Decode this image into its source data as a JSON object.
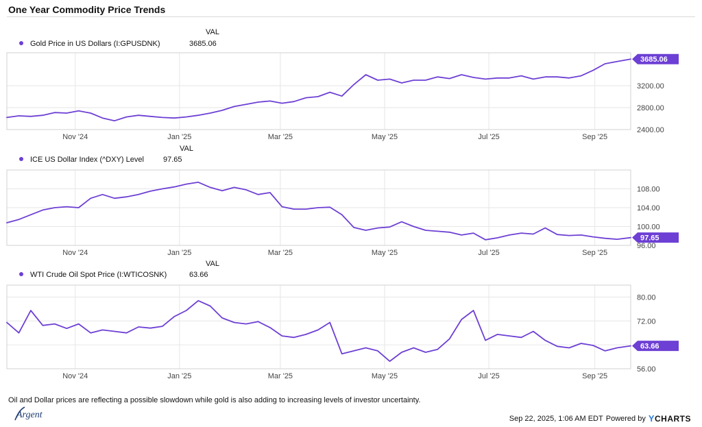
{
  "title": "One Year Commodity Price Trends",
  "caption": "Oil and Dollar prices are reflecting a possible slowdown while gold is also adding to increasing levels of investor uncertainty.",
  "footer": {
    "timestamp": "Sep 22, 2025, 1:06 AM EDT",
    "powered_by": "Powered by",
    "brand": "CHARTS",
    "brand_icon": "ycharts-y-logo",
    "logo_text": "Argent"
  },
  "colors": {
    "series": "#6d3fd4",
    "badge": "#6d3fd4",
    "grid": "#e6e6e6",
    "text": "#111111"
  },
  "chart_data": [
    {
      "type": "line",
      "legend_header": "VAL",
      "x_range": [
        "2024-09-22",
        "2025-09-22"
      ],
      "x_ticks": [
        {
          "date": "2024-11-01",
          "label": "Nov '24"
        },
        {
          "date": "2025-01-01",
          "label": "Jan '25"
        },
        {
          "date": "2025-03-01",
          "label": "Mar '25"
        },
        {
          "date": "2025-05-01",
          "label": "May '25"
        },
        {
          "date": "2025-07-01",
          "label": "Jul '25"
        },
        {
          "date": "2025-09-01",
          "label": "Sep '25"
        }
      ],
      "ylim": [
        2400,
        3800
      ],
      "y_ticks": [
        {
          "value": 2400,
          "label": "2400.00"
        },
        {
          "value": 2800,
          "label": "2800.00"
        },
        {
          "value": 3200,
          "label": "3200.00"
        }
      ],
      "grid": true,
      "series": [
        {
          "name": "Gold Price in US Dollars (I:GPUSDNK)",
          "last_value": "3685.06",
          "last_value_num": 3685.06,
          "points": [
            [
              "2024-09-22",
              2620
            ],
            [
              "2024-09-29",
              2650
            ],
            [
              "2024-10-06",
              2640
            ],
            [
              "2024-10-13",
              2660
            ],
            [
              "2024-10-20",
              2710
            ],
            [
              "2024-10-27",
              2700
            ],
            [
              "2024-11-03",
              2740
            ],
            [
              "2024-11-10",
              2700
            ],
            [
              "2024-11-17",
              2610
            ],
            [
              "2024-11-24",
              2560
            ],
            [
              "2024-12-01",
              2630
            ],
            [
              "2024-12-08",
              2660
            ],
            [
              "2024-12-15",
              2640
            ],
            [
              "2024-12-22",
              2620
            ],
            [
              "2024-12-29",
              2610
            ],
            [
              "2025-01-05",
              2630
            ],
            [
              "2025-01-12",
              2660
            ],
            [
              "2025-01-19",
              2700
            ],
            [
              "2025-01-26",
              2750
            ],
            [
              "2025-02-02",
              2820
            ],
            [
              "2025-02-09",
              2860
            ],
            [
              "2025-02-16",
              2900
            ],
            [
              "2025-02-23",
              2920
            ],
            [
              "2025-03-02",
              2880
            ],
            [
              "2025-03-09",
              2910
            ],
            [
              "2025-03-16",
              2980
            ],
            [
              "2025-03-23",
              3000
            ],
            [
              "2025-03-30",
              3080
            ],
            [
              "2025-04-06",
              3010
            ],
            [
              "2025-04-13",
              3220
            ],
            [
              "2025-04-20",
              3400
            ],
            [
              "2025-04-27",
              3300
            ],
            [
              "2025-05-04",
              3320
            ],
            [
              "2025-05-11",
              3250
            ],
            [
              "2025-05-18",
              3300
            ],
            [
              "2025-05-25",
              3300
            ],
            [
              "2025-06-01",
              3360
            ],
            [
              "2025-06-08",
              3330
            ],
            [
              "2025-06-15",
              3400
            ],
            [
              "2025-06-22",
              3350
            ],
            [
              "2025-06-29",
              3320
            ],
            [
              "2025-07-06",
              3340
            ],
            [
              "2025-07-13",
              3340
            ],
            [
              "2025-07-20",
              3380
            ],
            [
              "2025-07-27",
              3320
            ],
            [
              "2025-08-03",
              3360
            ],
            [
              "2025-08-10",
              3360
            ],
            [
              "2025-08-17",
              3340
            ],
            [
              "2025-08-24",
              3380
            ],
            [
              "2025-08-31",
              3480
            ],
            [
              "2025-09-07",
              3600
            ],
            [
              "2025-09-14",
              3640
            ],
            [
              "2025-09-22",
              3685.06
            ]
          ]
        }
      ]
    },
    {
      "type": "line",
      "legend_header": "VAL",
      "x_range": [
        "2024-09-22",
        "2025-09-22"
      ],
      "x_ticks": [
        {
          "date": "2024-11-01",
          "label": "Nov '24"
        },
        {
          "date": "2025-01-01",
          "label": "Jan '25"
        },
        {
          "date": "2025-03-01",
          "label": "Mar '25"
        },
        {
          "date": "2025-05-01",
          "label": "May '25"
        },
        {
          "date": "2025-07-01",
          "label": "Jul '25"
        },
        {
          "date": "2025-09-01",
          "label": "Sep '25"
        }
      ],
      "ylim": [
        96,
        112
      ],
      "y_ticks": [
        {
          "value": 96,
          "label": "96.00"
        },
        {
          "value": 100,
          "label": "100.00"
        },
        {
          "value": 104,
          "label": "104.00"
        },
        {
          "value": 108,
          "label": "108.00"
        }
      ],
      "grid": true,
      "series": [
        {
          "name": "ICE US Dollar Index (^DXY) Level",
          "last_value": "97.65",
          "last_value_num": 97.65,
          "points": [
            [
              "2024-09-22",
              100.8
            ],
            [
              "2024-09-29",
              101.5
            ],
            [
              "2024-10-06",
              102.5
            ],
            [
              "2024-10-13",
              103.5
            ],
            [
              "2024-10-20",
              104.0
            ],
            [
              "2024-10-27",
              104.2
            ],
            [
              "2024-11-03",
              104.0
            ],
            [
              "2024-11-10",
              106.0
            ],
            [
              "2024-11-17",
              106.8
            ],
            [
              "2024-11-24",
              106.0
            ],
            [
              "2024-12-01",
              106.3
            ],
            [
              "2024-12-08",
              106.8
            ],
            [
              "2024-12-15",
              107.5
            ],
            [
              "2024-12-22",
              108.0
            ],
            [
              "2024-12-29",
              108.4
            ],
            [
              "2025-01-05",
              109.0
            ],
            [
              "2025-01-12",
              109.4
            ],
            [
              "2025-01-19",
              108.3
            ],
            [
              "2025-01-26",
              107.6
            ],
            [
              "2025-02-02",
              108.3
            ],
            [
              "2025-02-09",
              107.8
            ],
            [
              "2025-02-16",
              106.8
            ],
            [
              "2025-02-23",
              107.2
            ],
            [
              "2025-03-02",
              104.2
            ],
            [
              "2025-03-09",
              103.7
            ],
            [
              "2025-03-16",
              103.7
            ],
            [
              "2025-03-23",
              104.0
            ],
            [
              "2025-03-30",
              104.1
            ],
            [
              "2025-04-06",
              102.5
            ],
            [
              "2025-04-13",
              99.8
            ],
            [
              "2025-04-20",
              99.2
            ],
            [
              "2025-04-27",
              99.7
            ],
            [
              "2025-05-04",
              99.9
            ],
            [
              "2025-05-11",
              101.0
            ],
            [
              "2025-05-18",
              100.0
            ],
            [
              "2025-05-25",
              99.2
            ],
            [
              "2025-06-01",
              99.0
            ],
            [
              "2025-06-08",
              98.8
            ],
            [
              "2025-06-15",
              98.2
            ],
            [
              "2025-06-22",
              98.6
            ],
            [
              "2025-06-29",
              97.2
            ],
            [
              "2025-07-06",
              97.6
            ],
            [
              "2025-07-13",
              98.2
            ],
            [
              "2025-07-20",
              98.6
            ],
            [
              "2025-07-27",
              98.4
            ],
            [
              "2025-08-03",
              99.7
            ],
            [
              "2025-08-10",
              98.3
            ],
            [
              "2025-08-17",
              98.1
            ],
            [
              "2025-08-24",
              98.2
            ],
            [
              "2025-08-31",
              97.8
            ],
            [
              "2025-09-07",
              97.5
            ],
            [
              "2025-09-14",
              97.3
            ],
            [
              "2025-09-22",
              97.65
            ]
          ]
        }
      ]
    },
    {
      "type": "line",
      "legend_header": "VAL",
      "x_range": [
        "2024-09-22",
        "2025-09-22"
      ],
      "x_ticks": [
        {
          "date": "2024-11-01",
          "label": "Nov '24"
        },
        {
          "date": "2025-01-01",
          "label": "Jan '25"
        },
        {
          "date": "2025-03-01",
          "label": "Mar '25"
        },
        {
          "date": "2025-05-01",
          "label": "May '25"
        },
        {
          "date": "2025-07-01",
          "label": "Jul '25"
        },
        {
          "date": "2025-09-01",
          "label": "Sep '25"
        }
      ],
      "ylim": [
        56,
        84
      ],
      "y_ticks": [
        {
          "value": 56,
          "label": "56.00"
        },
        {
          "value": 64,
          "label": "64.00"
        },
        {
          "value": 72,
          "label": "72.00"
        },
        {
          "value": 80,
          "label": "80.00"
        }
      ],
      "grid": true,
      "series": [
        {
          "name": "WTI Crude Oil Spot Price (I:WTICOSNK)",
          "last_value": "63.66",
          "last_value_num": 63.66,
          "points": [
            [
              "2024-09-22",
              71.5
            ],
            [
              "2024-09-29",
              68.0
            ],
            [
              "2024-10-06",
              75.5
            ],
            [
              "2024-10-13",
              70.5
            ],
            [
              "2024-10-20",
              71.0
            ],
            [
              "2024-10-27",
              69.5
            ],
            [
              "2024-11-03",
              71.0
            ],
            [
              "2024-11-10",
              68.0
            ],
            [
              "2024-11-17",
              69.0
            ],
            [
              "2024-11-24",
              68.5
            ],
            [
              "2024-12-01",
              68.0
            ],
            [
              "2024-12-08",
              70.0
            ],
            [
              "2024-12-15",
              69.6
            ],
            [
              "2024-12-22",
              70.2
            ],
            [
              "2024-12-29",
              73.5
            ],
            [
              "2025-01-05",
              75.5
            ],
            [
              "2025-01-12",
              78.8
            ],
            [
              "2025-01-19",
              77.0
            ],
            [
              "2025-01-26",
              73.0
            ],
            [
              "2025-02-02",
              71.5
            ],
            [
              "2025-02-09",
              71.0
            ],
            [
              "2025-02-16",
              71.8
            ],
            [
              "2025-02-23",
              69.8
            ],
            [
              "2025-03-02",
              67.0
            ],
            [
              "2025-03-09",
              66.5
            ],
            [
              "2025-03-16",
              67.5
            ],
            [
              "2025-03-23",
              69.0
            ],
            [
              "2025-03-30",
              71.5
            ],
            [
              "2025-04-06",
              61.0
            ],
            [
              "2025-04-13",
              62.0
            ],
            [
              "2025-04-20",
              63.0
            ],
            [
              "2025-04-27",
              62.0
            ],
            [
              "2025-05-04",
              58.5
            ],
            [
              "2025-05-11",
              61.5
            ],
            [
              "2025-05-18",
              63.0
            ],
            [
              "2025-05-25",
              61.5
            ],
            [
              "2025-06-01",
              62.5
            ],
            [
              "2025-06-08",
              66.0
            ],
            [
              "2025-06-15",
              72.5
            ],
            [
              "2025-06-22",
              75.5
            ],
            [
              "2025-06-29",
              65.5
            ],
            [
              "2025-07-06",
              67.5
            ],
            [
              "2025-07-13",
              67.0
            ],
            [
              "2025-07-20",
              66.5
            ],
            [
              "2025-07-27",
              68.5
            ],
            [
              "2025-08-03",
              65.5
            ],
            [
              "2025-08-10",
              63.5
            ],
            [
              "2025-08-17",
              63.0
            ],
            [
              "2025-08-24",
              64.5
            ],
            [
              "2025-08-31",
              63.8
            ],
            [
              "2025-09-07",
              62.0
            ],
            [
              "2025-09-14",
              63.0
            ],
            [
              "2025-09-22",
              63.66
            ]
          ]
        }
      ]
    }
  ]
}
